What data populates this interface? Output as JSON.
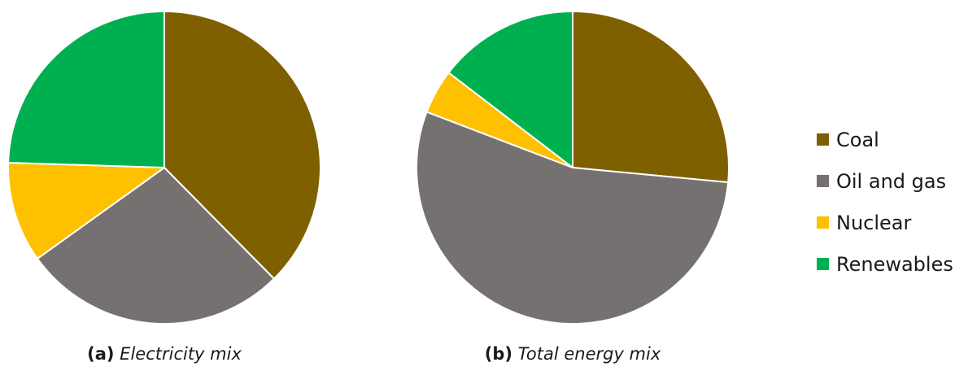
{
  "colors": {
    "Coal": "#7f6000",
    "Oil and gas": "#767171",
    "Nuclear": "#ffc000",
    "Renewables": "#00b050"
  },
  "legend": [
    "Coal",
    "Oil and gas",
    "Nuclear",
    "Renewables"
  ],
  "chart_data": [
    {
      "type": "pie",
      "panel": "(a)",
      "caption": "Electricity mix",
      "labels": [
        "Coal",
        "Oil and gas",
        "Nuclear",
        "Renewables"
      ],
      "values": [
        37.6,
        27.5,
        10.4,
        24.5
      ]
    },
    {
      "type": "pie",
      "panel": "(b)",
      "caption": "Total energy mix",
      "labels": [
        "Coal",
        "Oil and gas",
        "Nuclear",
        "Renewables"
      ],
      "values": [
        26.5,
        54.3,
        4.6,
        14.6
      ]
    }
  ]
}
